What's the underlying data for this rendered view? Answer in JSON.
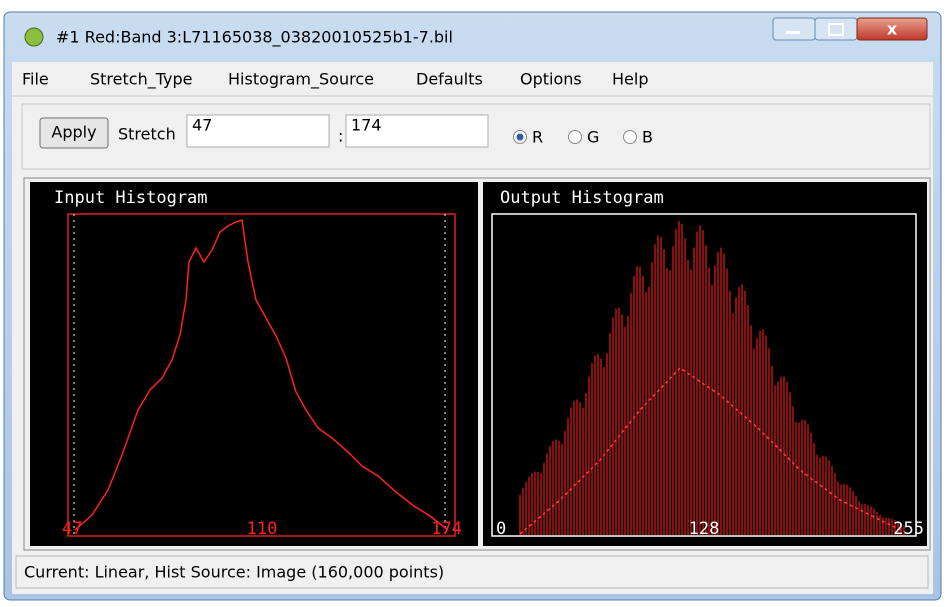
{
  "window": {
    "title": "#1 Red:Band 3:L71165038_03820010525b1-7.bil"
  },
  "menu": [
    "File",
    "Stretch_Type",
    "Histogram_Source",
    "Defaults",
    "Options",
    "Help"
  ],
  "toolbar": {
    "apply": "Apply",
    "stretch_label": "Stretch",
    "min": "47",
    "separator": ":",
    "max": "174",
    "radios": [
      "R",
      "G",
      "B"
    ]
  },
  "input_histogram": {
    "title": "Input Histogram",
    "labels": [
      "47",
      "110",
      "174"
    ]
  },
  "output_histogram": {
    "title": "Output Histogram",
    "labels": [
      "0",
      "128",
      "255"
    ]
  },
  "status": "Current: Linear, Hist Source: Image (160,000 points)"
}
